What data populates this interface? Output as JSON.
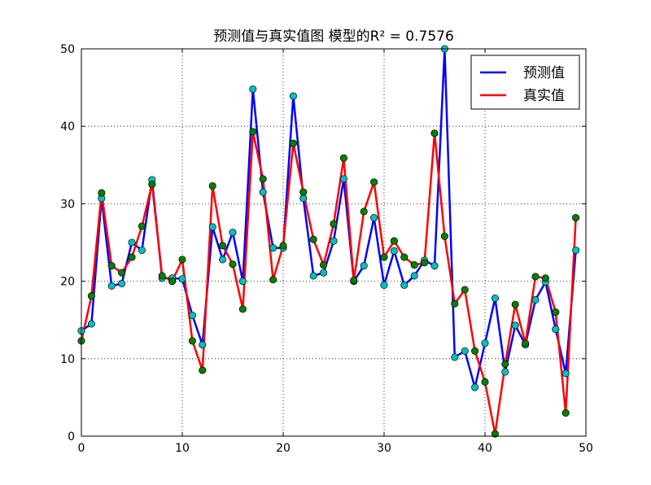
{
  "chart_data": {
    "type": "line",
    "title": "预测值与真实值图 模型的R² = 0.7576",
    "xlabel": "",
    "ylabel": "",
    "xlim": [
      0,
      50
    ],
    "ylim": [
      0,
      50
    ],
    "x_ticks": [
      "0",
      "10",
      "20",
      "30",
      "40",
      "50"
    ],
    "y_ticks": [
      "0",
      "10",
      "20",
      "30",
      "40",
      "50"
    ],
    "grid": true,
    "legend_position": "top-right",
    "x": [
      0,
      1,
      2,
      3,
      4,
      5,
      6,
      7,
      8,
      9,
      10,
      11,
      12,
      13,
      14,
      15,
      16,
      17,
      18,
      19,
      20,
      21,
      22,
      23,
      24,
      25,
      26,
      27,
      28,
      29,
      30,
      31,
      32,
      33,
      34,
      35,
      36,
      37,
      38,
      39,
      40,
      41,
      42,
      43,
      44,
      45,
      46,
      47,
      48,
      49
    ],
    "series": [
      {
        "name": "预测值",
        "color": "#0000ff",
        "marker_color": "#00bfbf",
        "values": [
          13.6,
          14.5,
          30.7,
          19.4,
          19.7,
          25.0,
          24.0,
          33.1,
          20.4,
          20.4,
          20.3,
          15.6,
          11.8,
          27.0,
          22.8,
          26.3,
          20.0,
          44.8,
          31.5,
          24.3,
          24.3,
          43.9,
          30.7,
          20.7,
          21.1,
          25.2,
          33.2,
          20.0,
          22.0,
          28.2,
          19.5,
          23.9,
          19.5,
          20.7,
          22.7,
          22.0,
          50.0,
          10.2,
          11.0,
          6.3,
          12.0,
          17.8,
          8.3,
          14.3,
          11.8,
          17.6,
          19.9,
          13.8,
          8.1,
          24.0
        ]
      },
      {
        "name": "真实值",
        "color": "#ff0000",
        "marker_color": "#008000",
        "values": [
          12.3,
          18.1,
          31.4,
          22.0,
          21.1,
          23.1,
          27.1,
          32.5,
          20.7,
          20.0,
          22.8,
          12.3,
          8.5,
          32.3,
          24.6,
          22.2,
          16.4,
          39.3,
          33.2,
          20.2,
          24.6,
          37.8,
          31.5,
          25.4,
          22.1,
          27.4,
          35.9,
          20.1,
          29.0,
          32.8,
          23.1,
          25.2,
          23.1,
          22.1,
          22.4,
          39.1,
          25.8,
          17.1,
          18.9,
          11.0,
          7.0,
          0.3,
          9.3,
          17.0,
          12.0,
          20.6,
          20.4,
          16.0,
          3.0,
          28.2
        ]
      }
    ]
  }
}
